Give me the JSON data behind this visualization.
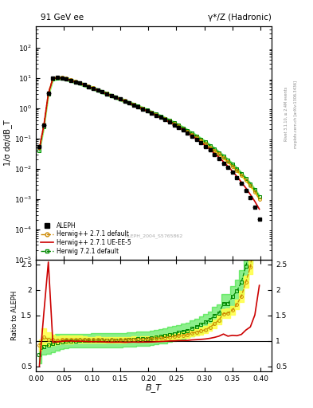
{
  "title_left": "91 GeV ee",
  "title_right": "γ*/Z (Hadronic)",
  "ylabel_main": "1/σ dσ/dB_T",
  "ylabel_ratio": "Ratio to ALEPH",
  "xlabel": "B_T",
  "right_label_top": "Rivet 3.1.10, ≥ 2.4M events",
  "right_label_bottom": "mcplots.cern.ch [arXiv:1306.3436]",
  "watermark": "ALEPH_2004_S5765862",
  "xlim": [
    0.0,
    0.42
  ],
  "ylim_main": [
    1e-05,
    500
  ],
  "ylim_ratio": [
    0.4,
    2.6
  ],
  "ratio_yticks": [
    0.5,
    1.0,
    1.5,
    2.0,
    2.5
  ],
  "ratio_yticklabels": [
    "0.5",
    "1",
    "1.5",
    "2",
    "2.5"
  ],
  "aleph_x": [
    0.006,
    0.014,
    0.022,
    0.03,
    0.038,
    0.046,
    0.054,
    0.062,
    0.07,
    0.078,
    0.086,
    0.094,
    0.102,
    0.11,
    0.118,
    0.126,
    0.134,
    0.142,
    0.15,
    0.158,
    0.166,
    0.174,
    0.182,
    0.19,
    0.198,
    0.206,
    0.214,
    0.222,
    0.23,
    0.238,
    0.246,
    0.254,
    0.262,
    0.27,
    0.278,
    0.286,
    0.294,
    0.302,
    0.31,
    0.318,
    0.326,
    0.334,
    0.342,
    0.35,
    0.358,
    0.366,
    0.374,
    0.382,
    0.39,
    0.398
  ],
  "aleph_y": [
    0.055,
    0.28,
    3.2,
    9.8,
    10.4,
    10.1,
    9.4,
    8.4,
    7.5,
    6.7,
    5.9,
    5.15,
    4.55,
    3.95,
    3.45,
    3.02,
    2.62,
    2.28,
    1.98,
    1.72,
    1.49,
    1.29,
    1.11,
    0.955,
    0.815,
    0.695,
    0.588,
    0.495,
    0.415,
    0.345,
    0.284,
    0.232,
    0.188,
    0.151,
    0.119,
    0.093,
    0.072,
    0.055,
    0.041,
    0.03,
    0.022,
    0.015,
    0.011,
    0.0075,
    0.005,
    0.0032,
    0.0019,
    0.0011,
    0.00055,
    0.00022
  ],
  "aleph_yerr": [
    0.003,
    0.02,
    0.15,
    0.3,
    0.3,
    0.3,
    0.25,
    0.22,
    0.18,
    0.16,
    0.14,
    0.12,
    0.1,
    0.09,
    0.08,
    0.07,
    0.06,
    0.05,
    0.045,
    0.04,
    0.035,
    0.03,
    0.025,
    0.022,
    0.019,
    0.016,
    0.014,
    0.012,
    0.01,
    0.008,
    0.007,
    0.006,
    0.005,
    0.004,
    0.003,
    0.003,
    0.002,
    0.002,
    0.0015,
    0.0012,
    0.001,
    0.0007,
    0.0005,
    0.0004,
    0.0003,
    0.0002,
    0.00015,
    0.0001,
    6e-05,
    3e-05
  ],
  "aleph_xerr": [
    0.004,
    0.004,
    0.004,
    0.004,
    0.004,
    0.004,
    0.004,
    0.004,
    0.004,
    0.004,
    0.004,
    0.004,
    0.004,
    0.004,
    0.004,
    0.004,
    0.004,
    0.004,
    0.004,
    0.004,
    0.004,
    0.004,
    0.004,
    0.004,
    0.004,
    0.004,
    0.004,
    0.004,
    0.004,
    0.004,
    0.004,
    0.004,
    0.004,
    0.004,
    0.004,
    0.004,
    0.004,
    0.004,
    0.004,
    0.004,
    0.004,
    0.004,
    0.004,
    0.004,
    0.004,
    0.004,
    0.004,
    0.004,
    0.004,
    0.004
  ],
  "h271_x": [
    0.006,
    0.014,
    0.022,
    0.03,
    0.038,
    0.046,
    0.054,
    0.062,
    0.07,
    0.078,
    0.086,
    0.094,
    0.102,
    0.11,
    0.118,
    0.126,
    0.134,
    0.142,
    0.15,
    0.158,
    0.166,
    0.174,
    0.182,
    0.19,
    0.198,
    0.206,
    0.214,
    0.222,
    0.23,
    0.238,
    0.246,
    0.254,
    0.262,
    0.27,
    0.278,
    0.286,
    0.294,
    0.302,
    0.31,
    0.318,
    0.326,
    0.334,
    0.342,
    0.35,
    0.358,
    0.366,
    0.374,
    0.382,
    0.39,
    0.398
  ],
  "h271_y": [
    0.05,
    0.3,
    3.3,
    10.0,
    10.5,
    10.3,
    9.65,
    8.65,
    7.7,
    6.9,
    6.05,
    5.25,
    4.65,
    4.05,
    3.52,
    3.07,
    2.67,
    2.32,
    2.02,
    1.76,
    1.53,
    1.33,
    1.14,
    0.985,
    0.843,
    0.72,
    0.615,
    0.521,
    0.44,
    0.37,
    0.308,
    0.255,
    0.209,
    0.17,
    0.137,
    0.109,
    0.086,
    0.067,
    0.052,
    0.04,
    0.031,
    0.023,
    0.017,
    0.012,
    0.0086,
    0.006,
    0.0041,
    0.0027,
    0.0017,
    0.001
  ],
  "h271_ratio": [
    0.91,
    1.07,
    1.03,
    1.02,
    1.01,
    1.02,
    1.03,
    1.03,
    1.03,
    1.03,
    1.025,
    1.02,
    1.02,
    1.025,
    1.02,
    1.017,
    1.019,
    1.018,
    1.02,
    1.023,
    1.027,
    1.031,
    1.027,
    1.031,
    1.034,
    1.036,
    1.045,
    1.052,
    1.06,
    1.072,
    1.084,
    1.099,
    1.112,
    1.125,
    1.151,
    1.172,
    1.194,
    1.218,
    1.268,
    1.333,
    1.409,
    1.533,
    1.545,
    1.6,
    1.72,
    1.875,
    2.16,
    2.45,
    3.09,
    4.55
  ],
  "h271ue_x": [
    0.006,
    0.014,
    0.022,
    0.03,
    0.038,
    0.046,
    0.054,
    0.062,
    0.07,
    0.078,
    0.086,
    0.094,
    0.102,
    0.11,
    0.118,
    0.126,
    0.134,
    0.142,
    0.15,
    0.158,
    0.166,
    0.174,
    0.182,
    0.19,
    0.198,
    0.206,
    0.214,
    0.222,
    0.23,
    0.238,
    0.246,
    0.254,
    0.262,
    0.27,
    0.278,
    0.286,
    0.294,
    0.302,
    0.31,
    0.318,
    0.326,
    0.334,
    0.342,
    0.35,
    0.358,
    0.366,
    0.374,
    0.382,
    0.39,
    0.398
  ],
  "h271ue_y": [
    0.045,
    0.27,
    3.0,
    9.5,
    10.2,
    10.0,
    9.35,
    8.38,
    7.42,
    6.65,
    5.83,
    5.06,
    4.47,
    3.88,
    3.38,
    2.94,
    2.55,
    2.22,
    1.93,
    1.67,
    1.45,
    1.26,
    1.08,
    0.93,
    0.795,
    0.678,
    0.577,
    0.488,
    0.411,
    0.344,
    0.284,
    0.233,
    0.189,
    0.152,
    0.121,
    0.095,
    0.074,
    0.057,
    0.043,
    0.032,
    0.024,
    0.017,
    0.012,
    0.0083,
    0.0055,
    0.0036,
    0.0023,
    0.0014,
    0.00083,
    0.00046
  ],
  "h271ue_ratio": [
    0.5,
    1.55,
    2.55,
    0.97,
    0.98,
    0.99,
    0.995,
    0.998,
    0.99,
    0.993,
    0.988,
    0.983,
    0.982,
    0.982,
    0.98,
    0.974,
    0.973,
    0.974,
    0.975,
    0.971,
    0.973,
    0.976,
    0.973,
    0.974,
    0.975,
    0.976,
    0.981,
    0.986,
    0.99,
    0.997,
    1.0,
    1.005,
    1.005,
    1.007,
    1.017,
    1.022,
    1.028,
    1.036,
    1.049,
    1.067,
    1.091,
    1.133,
    1.091,
    1.107,
    1.1,
    1.125,
    1.211,
    1.273,
    1.509,
    2.09
  ],
  "h721_x": [
    0.006,
    0.014,
    0.022,
    0.03,
    0.038,
    0.046,
    0.054,
    0.062,
    0.07,
    0.078,
    0.086,
    0.094,
    0.102,
    0.11,
    0.118,
    0.126,
    0.134,
    0.142,
    0.15,
    0.158,
    0.166,
    0.174,
    0.182,
    0.19,
    0.198,
    0.206,
    0.214,
    0.222,
    0.23,
    0.238,
    0.246,
    0.254,
    0.262,
    0.27,
    0.278,
    0.286,
    0.294,
    0.302,
    0.31,
    0.318,
    0.326,
    0.334,
    0.342,
    0.35,
    0.358,
    0.366,
    0.374,
    0.382,
    0.39,
    0.398
  ],
  "h721_y": [
    0.04,
    0.25,
    2.9,
    9.2,
    10.1,
    9.95,
    9.35,
    8.42,
    7.5,
    6.73,
    5.92,
    5.17,
    4.58,
    3.99,
    3.48,
    3.04,
    2.65,
    2.31,
    2.01,
    1.75,
    1.53,
    1.33,
    1.15,
    0.992,
    0.854,
    0.733,
    0.628,
    0.538,
    0.457,
    0.387,
    0.324,
    0.27,
    0.223,
    0.182,
    0.148,
    0.119,
    0.095,
    0.075,
    0.058,
    0.045,
    0.034,
    0.026,
    0.019,
    0.014,
    0.0099,
    0.0069,
    0.0047,
    0.0031,
    0.002,
    0.0012
  ],
  "h721_ratio": [
    0.73,
    0.89,
    0.91,
    0.94,
    0.97,
    0.985,
    0.995,
    1.002,
    1.0,
    1.004,
    1.003,
    1.004,
    1.007,
    1.01,
    1.009,
    1.007,
    1.011,
    1.013,
    1.015,
    1.017,
    1.027,
    1.031,
    1.036,
    1.039,
    1.048,
    1.055,
    1.068,
    1.087,
    1.101,
    1.122,
    1.14,
    1.164,
    1.186,
    1.205,
    1.244,
    1.28,
    1.319,
    1.364,
    1.415,
    1.5,
    1.545,
    1.733,
    1.727,
    1.867,
    1.98,
    2.156,
    2.47,
    2.82,
    3.64,
    5.45
  ],
  "h271_band_lo": [
    0.8,
    0.9,
    0.9,
    0.92,
    0.93,
    0.94,
    0.95,
    0.95,
    0.96,
    0.96,
    0.96,
    0.96,
    0.96,
    0.96,
    0.96,
    0.96,
    0.965,
    0.965,
    0.967,
    0.97,
    0.974,
    0.977,
    0.974,
    0.978,
    0.98,
    0.982,
    0.99,
    0.997,
    1.005,
    1.015,
    1.025,
    1.04,
    1.05,
    1.063,
    1.085,
    1.105,
    1.123,
    1.145,
    1.192,
    1.252,
    1.325,
    1.445,
    1.453,
    1.508,
    1.623,
    1.77,
    2.04,
    2.31,
    2.91,
    4.3
  ],
  "h271_band_hi": [
    1.02,
    1.24,
    1.16,
    1.12,
    1.09,
    1.1,
    1.11,
    1.11,
    1.1,
    1.1,
    1.09,
    1.08,
    1.08,
    1.085,
    1.08,
    1.074,
    1.073,
    1.071,
    1.073,
    1.076,
    1.08,
    1.085,
    1.08,
    1.084,
    1.088,
    1.09,
    1.1,
    1.107,
    1.115,
    1.129,
    1.143,
    1.158,
    1.174,
    1.187,
    1.217,
    1.239,
    1.265,
    1.291,
    1.344,
    1.414,
    1.493,
    1.621,
    1.637,
    1.692,
    1.817,
    1.98,
    2.28,
    2.59,
    3.27,
    4.8
  ],
  "h721_band_lo": [
    0.56,
    0.73,
    0.74,
    0.77,
    0.81,
    0.835,
    0.852,
    0.864,
    0.862,
    0.866,
    0.865,
    0.866,
    0.869,
    0.872,
    0.871,
    0.869,
    0.872,
    0.875,
    0.876,
    0.879,
    0.888,
    0.891,
    0.895,
    0.898,
    0.906,
    0.913,
    0.924,
    0.94,
    0.953,
    0.973,
    0.991,
    1.013,
    1.033,
    1.051,
    1.087,
    1.121,
    1.157,
    1.2,
    1.249,
    1.329,
    1.371,
    1.541,
    1.534,
    1.66,
    1.76,
    1.92,
    2.2,
    2.51,
    3.24,
    4.85
  ],
  "h721_band_hi": [
    0.9,
    1.05,
    1.08,
    1.11,
    1.13,
    1.135,
    1.138,
    1.14,
    1.138,
    1.142,
    1.141,
    1.142,
    1.145,
    1.148,
    1.147,
    1.145,
    1.15,
    1.151,
    1.154,
    1.155,
    1.166,
    1.171,
    1.177,
    1.18,
    1.19,
    1.197,
    1.212,
    1.234,
    1.249,
    1.271,
    1.289,
    1.315,
    1.339,
    1.359,
    1.401,
    1.439,
    1.481,
    1.528,
    1.581,
    1.671,
    1.719,
    1.925,
    1.92,
    2.074,
    2.2,
    2.392,
    2.74,
    3.13,
    4.04,
    6.05
  ],
  "color_aleph": "#000000",
  "color_h271": "#cc8800",
  "color_h271_ueee5": "#cc0000",
  "color_h721": "#008800",
  "color_h721_fill": "#00dd00",
  "color_h271_fill": "#ffff44",
  "bg_color": "#ffffff"
}
